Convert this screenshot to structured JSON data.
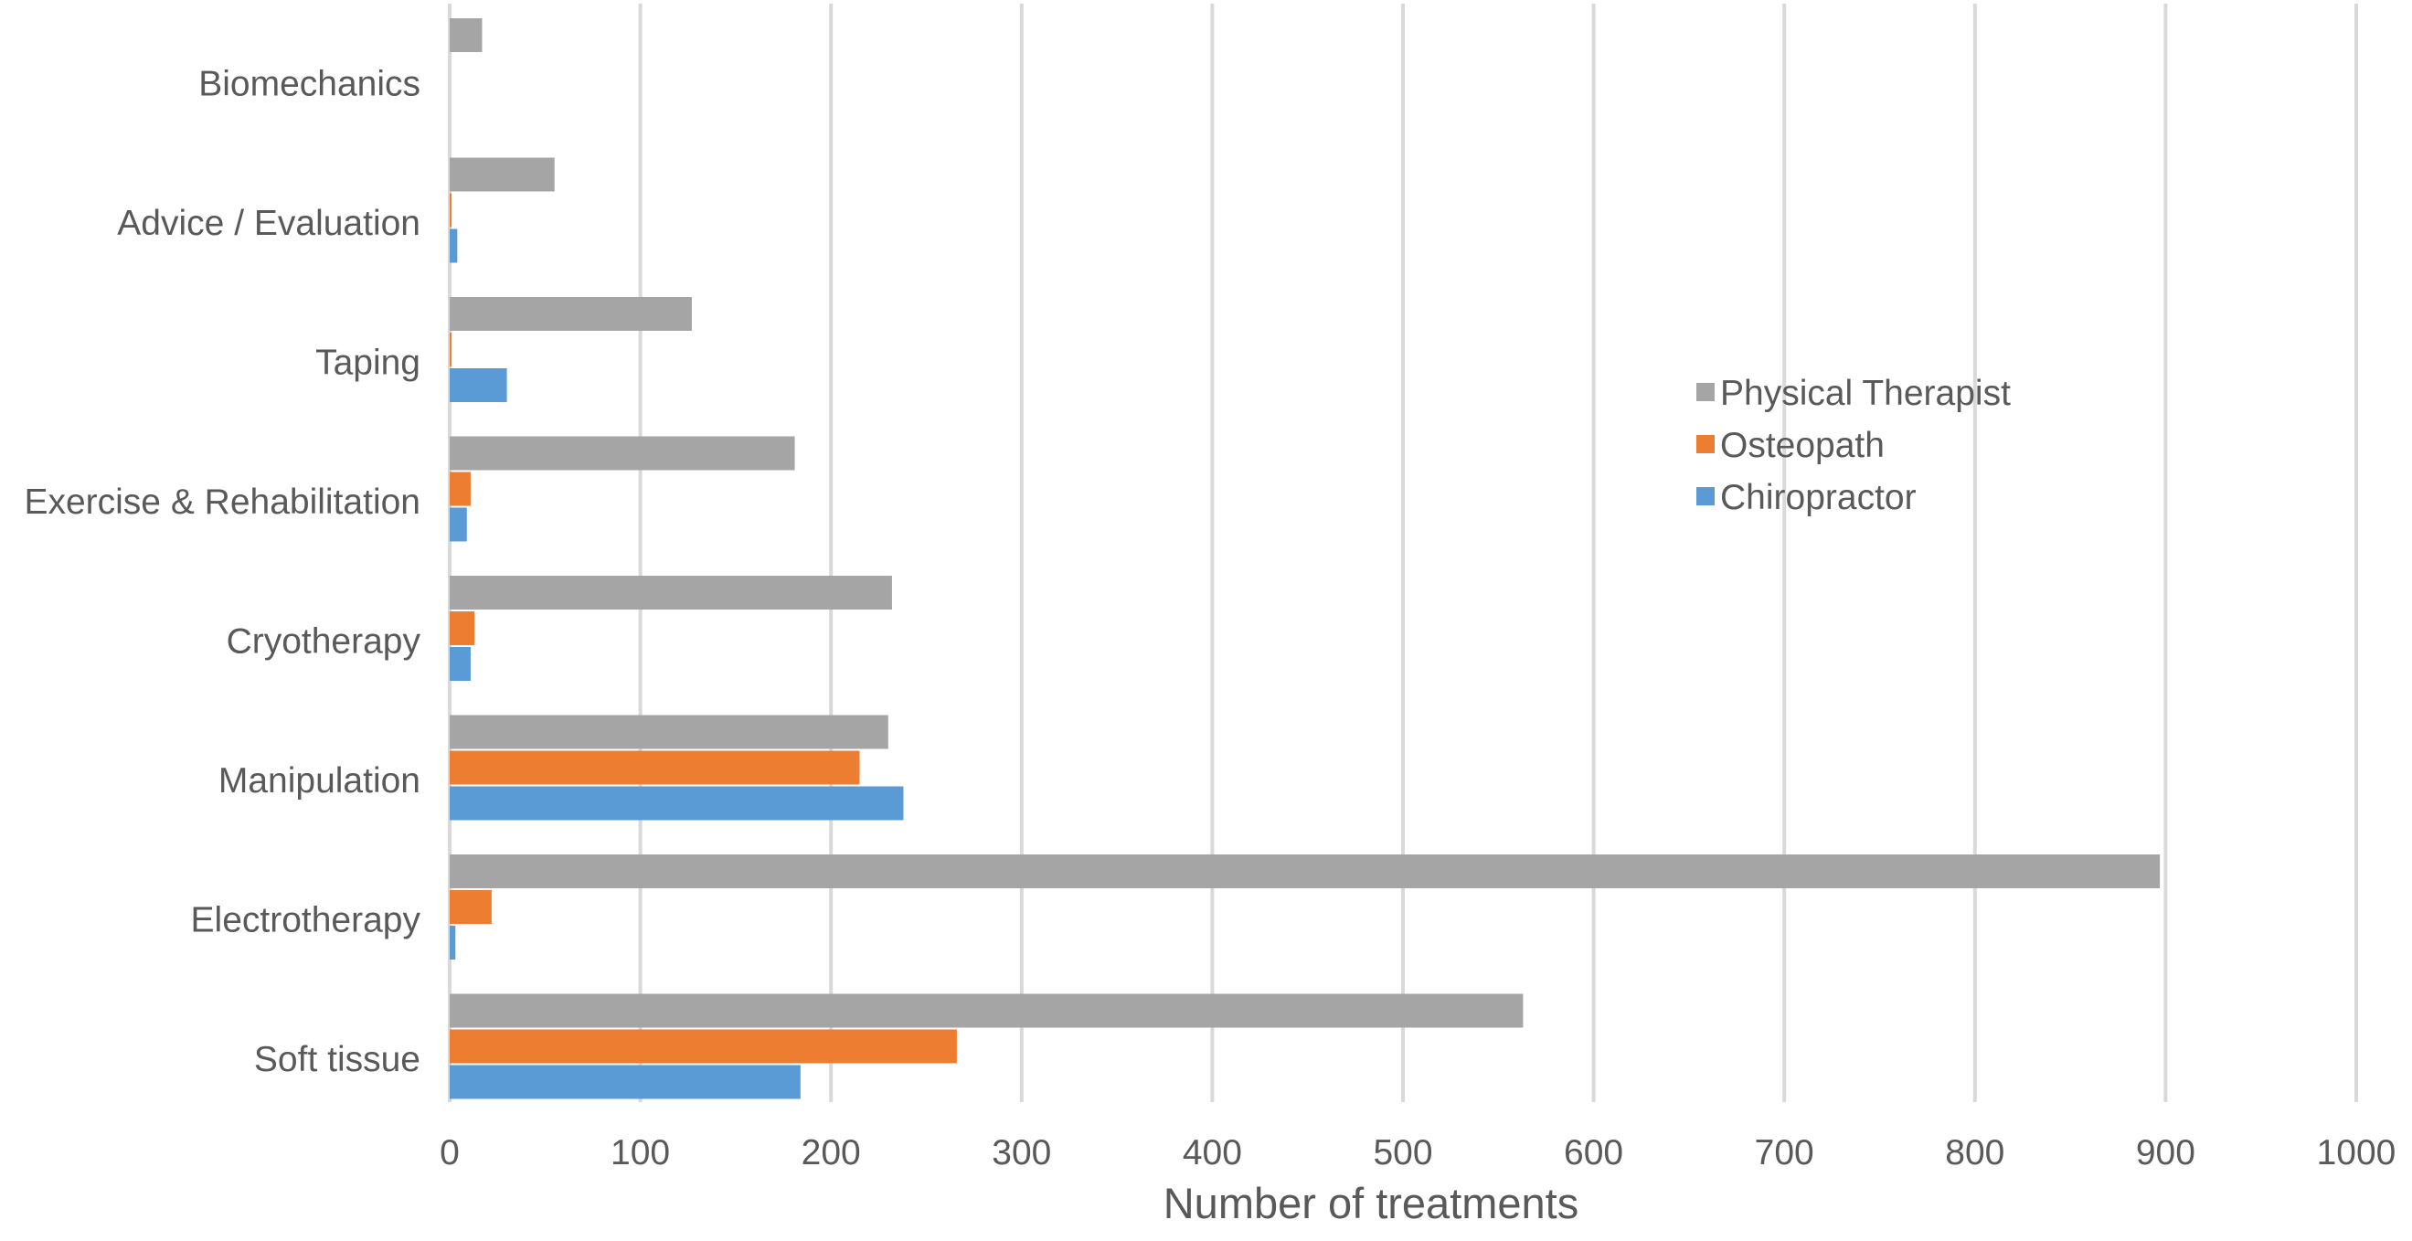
{
  "chart_data": {
    "type": "bar",
    "orientation": "horizontal",
    "title": "",
    "xlabel": "Number of treatments",
    "ylabel": "",
    "xlim": [
      0,
      1000
    ],
    "xticks": [
      0,
      100,
      200,
      300,
      400,
      500,
      600,
      700,
      800,
      900,
      1000
    ],
    "grid": true,
    "legend_position": "right",
    "categories": [
      "Biomechanics",
      "Advice / Evaluation",
      "Taping",
      "Exercise & Rehabilitation",
      "Cryotherapy",
      "Manipulation",
      "Electrotherapy",
      "Soft tissue"
    ],
    "series": [
      {
        "name": "Physical Therapist",
        "color": "#a5a5a5",
        "values": [
          17,
          55,
          127,
          181,
          232,
          230,
          897,
          563
        ]
      },
      {
        "name": "Osteopath",
        "color": "#ed7d31",
        "values": [
          0,
          1,
          1,
          11,
          13,
          215,
          22,
          266
        ]
      },
      {
        "name": "Chiropractor",
        "color": "#5b9bd5",
        "values": [
          0,
          4,
          30,
          9,
          11,
          238,
          3,
          184
        ]
      }
    ]
  }
}
